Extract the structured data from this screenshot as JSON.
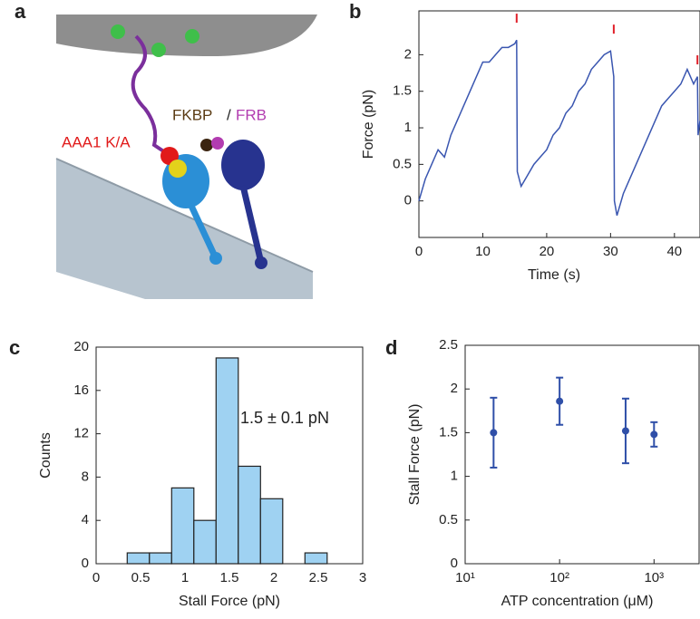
{
  "panel_a": {
    "label": "a",
    "annotations": [
      "AAA1 K/A",
      "FKBP",
      "/",
      "FRB"
    ]
  },
  "chart_data": [
    {
      "panel_label": "b",
      "type": "line",
      "xlabel": "Time (s)",
      "ylabel": "Force (pN)",
      "x": [
        0,
        1,
        2,
        3,
        4,
        5,
        6,
        7,
        8,
        9,
        10,
        11,
        12,
        13,
        14,
        15,
        15.3,
        15.4,
        16,
        17,
        18,
        19,
        20,
        21,
        22,
        23,
        24,
        25,
        26,
        27,
        28,
        29,
        30,
        30.5,
        30.6,
        31,
        32,
        33,
        34,
        35,
        36,
        37,
        38,
        39,
        40,
        41,
        42,
        43,
        43.6,
        43.7,
        44
      ],
      "values": [
        0.0,
        0.3,
        0.5,
        0.7,
        0.6,
        0.9,
        1.1,
        1.3,
        1.5,
        1.7,
        1.9,
        1.9,
        2.0,
        2.1,
        2.1,
        2.15,
        2.2,
        0.4,
        0.2,
        0.35,
        0.5,
        0.6,
        0.7,
        0.9,
        1.0,
        1.2,
        1.3,
        1.5,
        1.6,
        1.8,
        1.9,
        2.0,
        2.05,
        1.7,
        0.0,
        -0.2,
        0.1,
        0.3,
        0.5,
        0.7,
        0.9,
        1.1,
        1.3,
        1.4,
        1.5,
        1.6,
        1.8,
        1.6,
        1.7,
        0.9,
        1.1
      ],
      "color": "#3a56b0",
      "markers": {
        "x": [
          15.3,
          30.5,
          43.6
        ],
        "y": [
          2.5,
          2.35,
          1.93
        ],
        "color": "#e0202a"
      },
      "xlim": [
        0,
        44
      ],
      "ylim": [
        -0.5,
        2.6
      ],
      "xticks": [
        0,
        10,
        20,
        30,
        40
      ],
      "yticks": [
        0,
        0.5,
        1,
        1.5,
        2
      ]
    },
    {
      "panel_label": "c",
      "type": "histogram",
      "xlabel": "Stall Force (pN)",
      "ylabel": "Counts",
      "bins": [
        0.35,
        0.6,
        0.85,
        1.1,
        1.35,
        1.6,
        1.85,
        2.1,
        2.35,
        2.6
      ],
      "values": [
        1,
        1,
        7,
        4,
        19,
        9,
        6,
        0,
        1
      ],
      "color": "#9fd2f2",
      "annotation": "1.5 ± 0.1 pN",
      "xlim": [
        0,
        3
      ],
      "ylim": [
        0,
        20
      ],
      "xticks": [
        0,
        0.5,
        1,
        1.5,
        2,
        2.5,
        3
      ],
      "yticks": [
        0,
        4,
        8,
        12,
        16,
        20
      ]
    },
    {
      "panel_label": "d",
      "type": "scatter",
      "xlabel": "ATP concentration (μM)",
      "ylabel": "Stall Force (pN)",
      "x": [
        20,
        100,
        500,
        1000
      ],
      "values": [
        1.5,
        1.86,
        1.52,
        1.48
      ],
      "errors": [
        0.4,
        0.27,
        0.37,
        0.14
      ],
      "color": "#2f4fa8",
      "log_x": true,
      "xlim": [
        10,
        3000
      ],
      "ylim": [
        0,
        2.5
      ],
      "xticks": [
        {
          "value": 10,
          "label": "10¹"
        },
        {
          "value": 100,
          "label": "10²"
        },
        {
          "value": 1000,
          "label": "10³"
        }
      ],
      "yticks": [
        0,
        0.5,
        1,
        1.5,
        2,
        2.5
      ]
    }
  ]
}
